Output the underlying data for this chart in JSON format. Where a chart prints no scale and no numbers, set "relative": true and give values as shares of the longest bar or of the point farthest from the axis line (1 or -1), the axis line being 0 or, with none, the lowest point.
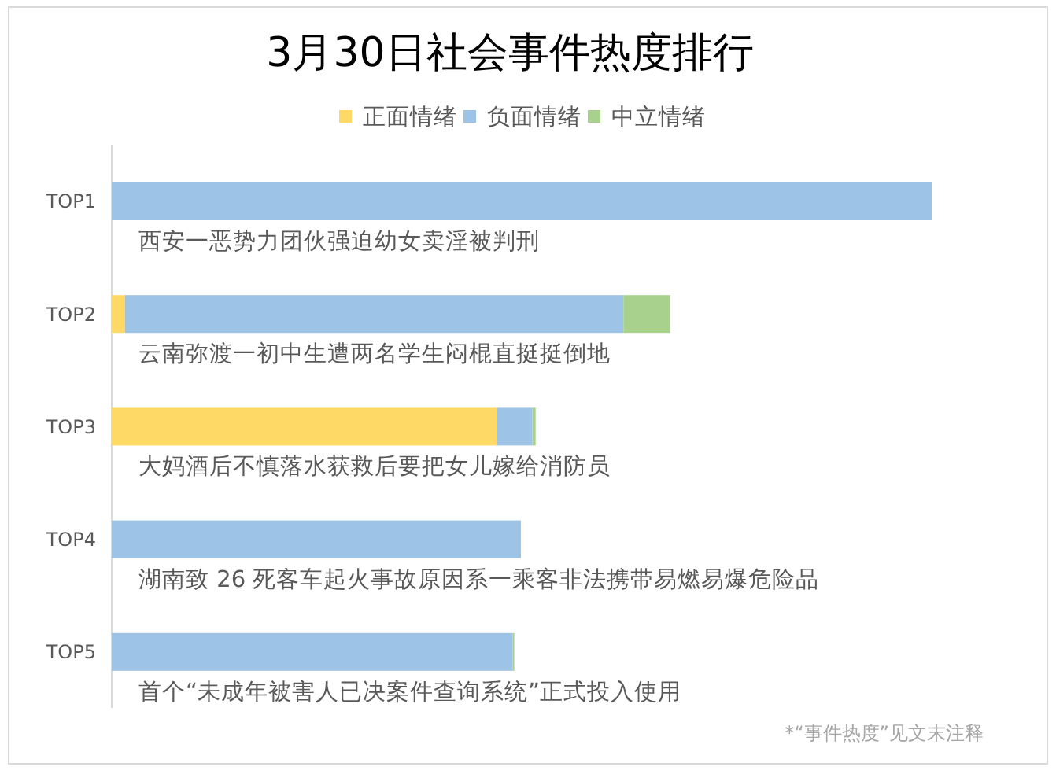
{
  "chart_data": {
    "type": "bar",
    "title": "3月30日社会事件热度排行",
    "orientation": "horizontal",
    "stacked": true,
    "relative": true,
    "categories": [
      "TOP1",
      "TOP2",
      "TOP3",
      "TOP4",
      "TOP5"
    ],
    "series": [
      {
        "name": "正面情绪",
        "color": "#ffd966",
        "values": [
          null,
          0.016,
          0.47,
          null,
          null
        ]
      },
      {
        "name": "负面情绪",
        "color": "#9dc3e6",
        "values": [
          1,
          0.608,
          0.043,
          0.499,
          0.489
        ]
      },
      {
        "name": "中立情绪",
        "color": "#a9d18e",
        "values": [
          null,
          0.057,
          0.004,
          null,
          0.002
        ]
      }
    ],
    "legend": "top",
    "annotations": [
      "西安一恶势力团伙强迫幼女卖淫被判刑",
      "云南弥渡一初中生遭两名学生闷棍直挺挺倒地",
      "大妈酒后不慎落水获救后要把女儿嫁给消防员",
      "湖南致 26 死客车起火事故原因系一乘客非法携带易燃易爆危险品",
      "首个“未成年被害人已决案件查询系统”正式投入使用",
      "*“事件热度”见文末注释"
    ]
  }
}
